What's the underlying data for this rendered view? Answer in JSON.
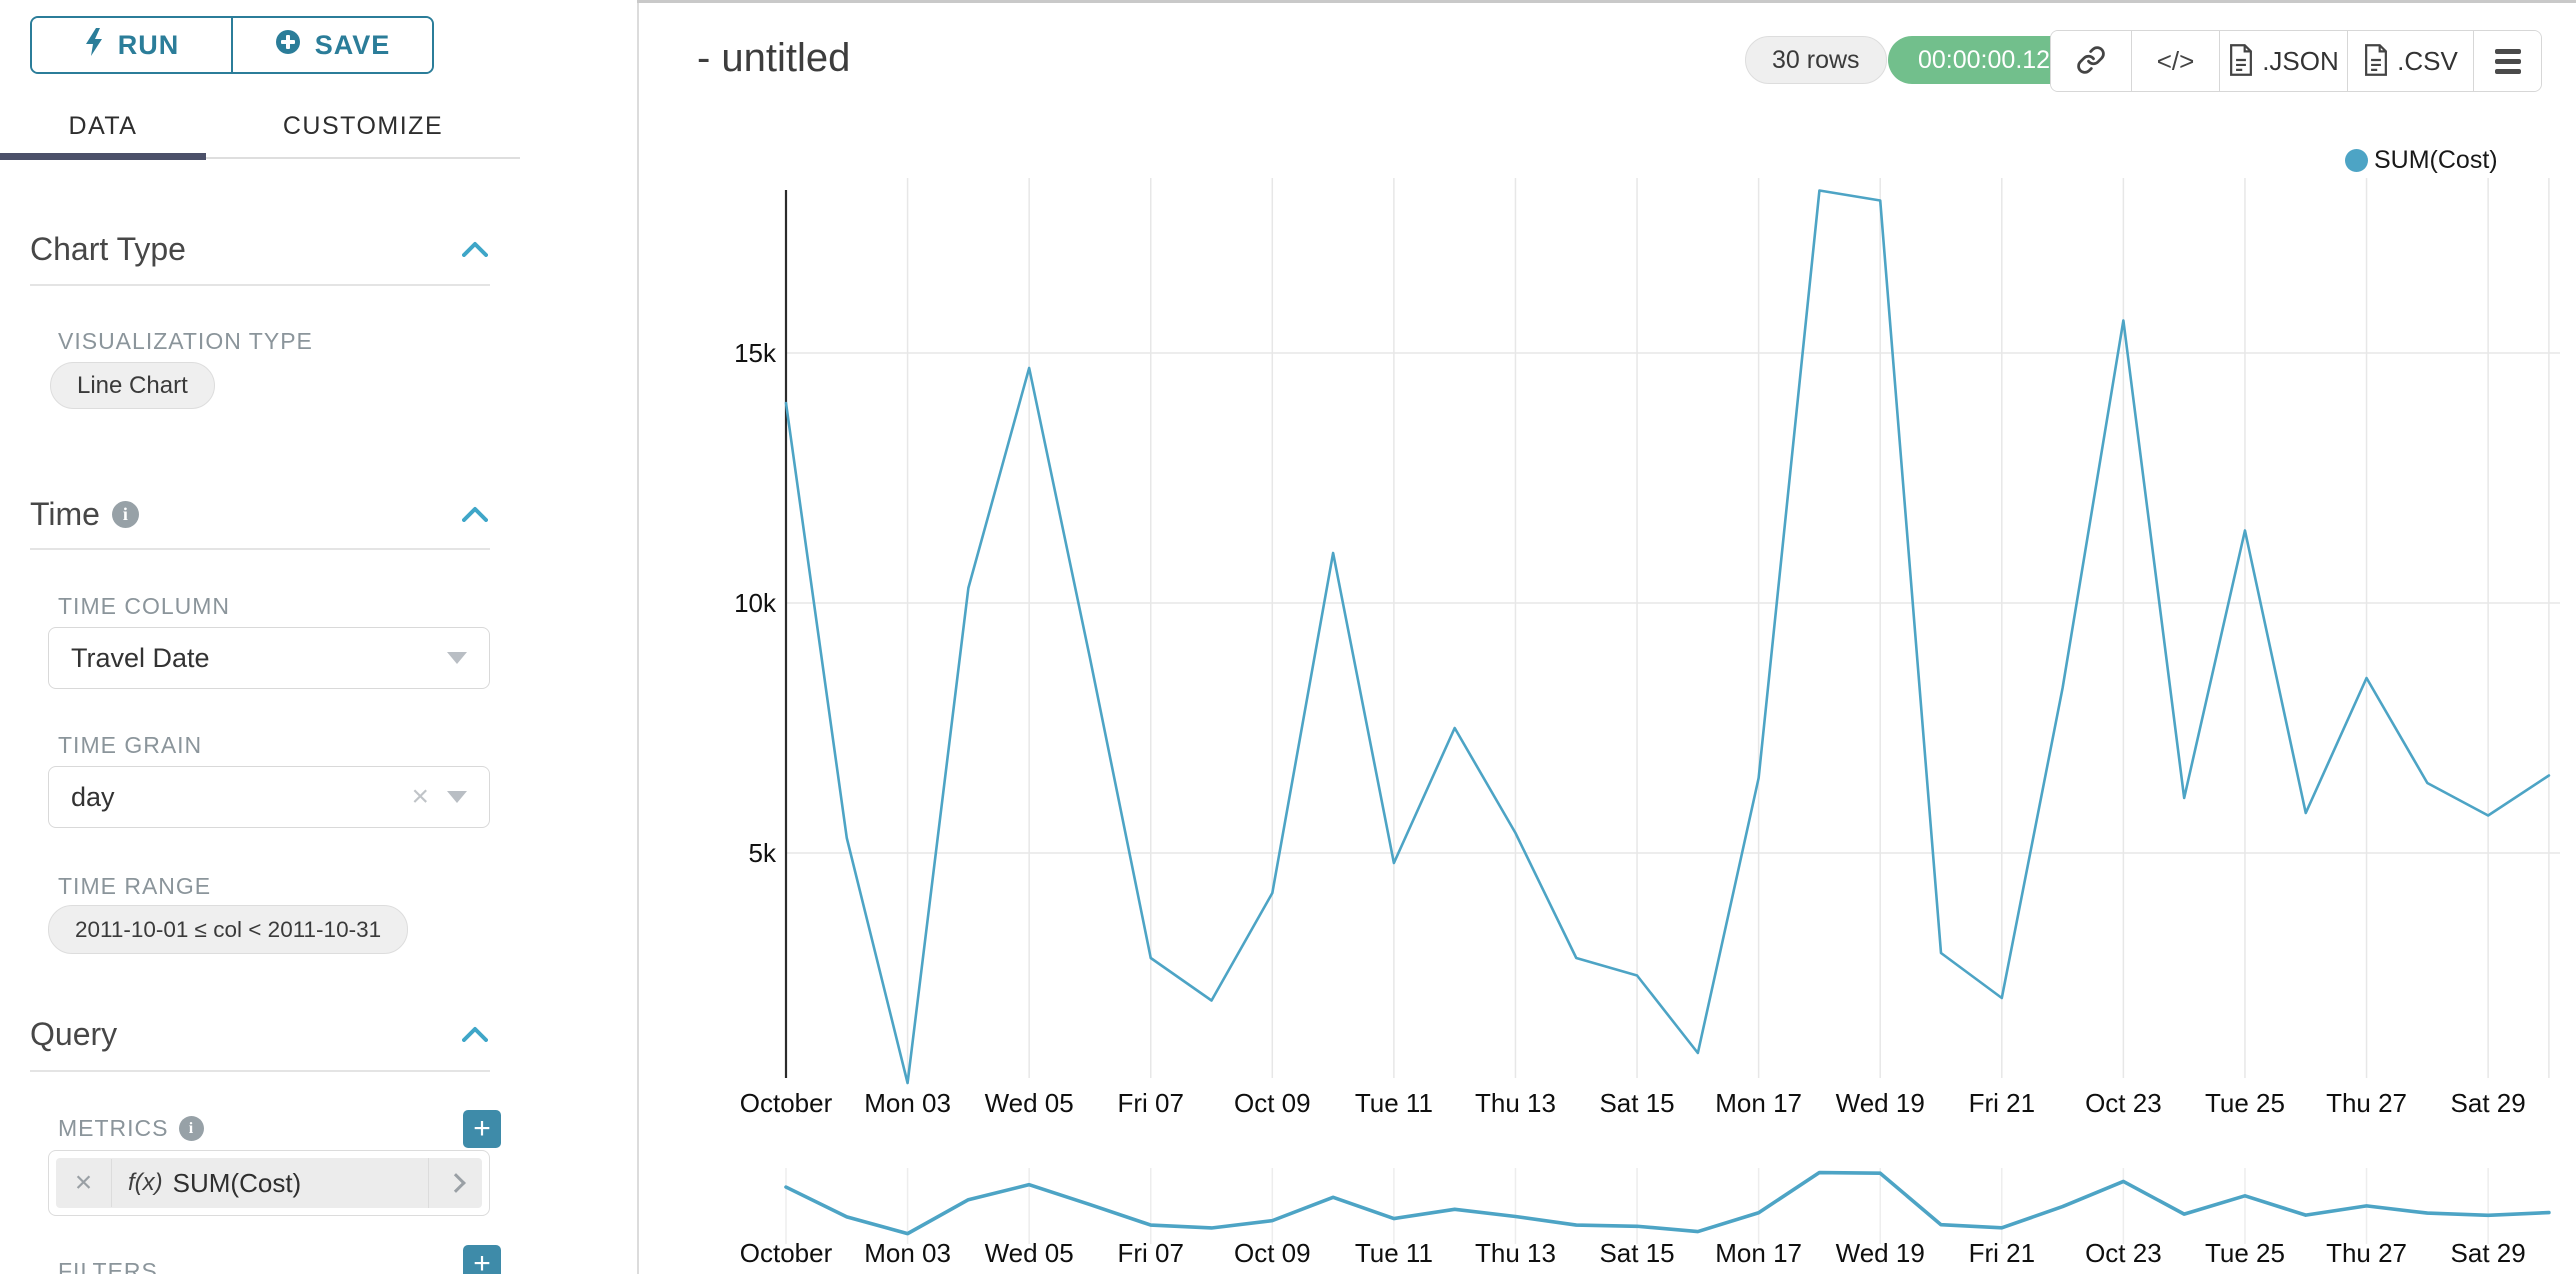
{
  "panel": {
    "run_label": "RUN",
    "save_label": "SAVE",
    "tabs": {
      "data": "DATA",
      "customize": "CUSTOMIZE"
    },
    "chart_type": {
      "title": "Chart Type",
      "viz_type_label": "VISUALIZATION TYPE",
      "viz_type_value": "Line Chart"
    },
    "time": {
      "title": "Time",
      "time_column_label": "TIME COLUMN",
      "time_column_value": "Travel Date",
      "time_grain_label": "TIME GRAIN",
      "time_grain_value": "day",
      "time_range_label": "TIME RANGE",
      "time_range_value": "2011-10-01 ≤ col < 2011-10-31"
    },
    "query": {
      "title": "Query",
      "metrics_label": "METRICS",
      "metric_fx": "f(x)",
      "metric_value": "SUM(Cost)",
      "filters_label": "FILTERS"
    }
  },
  "header": {
    "title": "- untitled",
    "rows_badge": "30 rows",
    "timer_badge": "00:00:00.12",
    "code_button": "</>",
    "export_json": ".JSON",
    "export_csv": ".CSV"
  },
  "legend": {
    "label": "SUM(Cost)",
    "color": "#4da4c5"
  },
  "colors": {
    "accent_teal": "#2b7d99",
    "line": "#4da4c5",
    "timer_green": "#72bf8c",
    "tab_underline": "#4b5069",
    "plus_button": "#3e8ba9",
    "gridline": "#e7e7e7"
  },
  "chart_data": {
    "type": "line",
    "title": "",
    "xlabel": "",
    "ylabel": "",
    "legend_position": "top-right",
    "grid": true,
    "x": [
      "2011-10-01",
      "2011-10-02",
      "2011-10-03",
      "2011-10-04",
      "2011-10-05",
      "2011-10-06",
      "2011-10-07",
      "2011-10-08",
      "2011-10-09",
      "2011-10-10",
      "2011-10-11",
      "2011-10-12",
      "2011-10-13",
      "2011-10-14",
      "2011-10-15",
      "2011-10-16",
      "2011-10-17",
      "2011-10-18",
      "2011-10-19",
      "2011-10-20",
      "2011-10-21",
      "2011-10-22",
      "2011-10-23",
      "2011-10-24",
      "2011-10-25",
      "2011-10-26",
      "2011-10-27",
      "2011-10-28",
      "2011-10-29",
      "2011-10-30"
    ],
    "series": [
      {
        "name": "SUM(Cost)",
        "values": [
          14000,
          5300,
          400,
          10300,
          14700,
          8900,
          2900,
          2050,
          4200,
          11000,
          4800,
          7500,
          5400,
          2900,
          2550,
          1000,
          6500,
          18250,
          18050,
          3000,
          2100,
          8300,
          15650,
          6100,
          11450,
          5800,
          8500,
          6400,
          5750,
          6550
        ]
      }
    ],
    "x_tick_labels": [
      "October",
      "Mon 03",
      "Wed 05",
      "Fri 07",
      "Oct 09",
      "Tue 11",
      "Thu 13",
      "Sat 15",
      "Mon 17",
      "Wed 19",
      "Fri 21",
      "Oct 23",
      "Tue 25",
      "Thu 27",
      "Sat 29"
    ],
    "y_ticks": [
      {
        "label": "5k",
        "value": 5000
      },
      {
        "label": "10k",
        "value": 10000
      },
      {
        "label": "15k",
        "value": 15000
      }
    ],
    "y_domain_approx": [
      350,
      18400
    ],
    "has_context_minichart": true
  }
}
